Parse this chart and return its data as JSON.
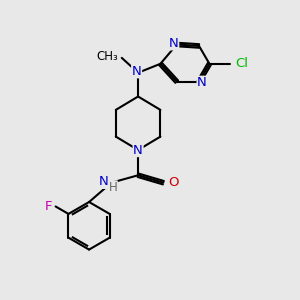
{
  "bg_color": "#e8e8e8",
  "bond_color": "#000000",
  "colors": {
    "N": "#0000cc",
    "Cl": "#00bb00",
    "O": "#cc0000",
    "F": "#cc00aa",
    "C": "#000000",
    "H": "#666666"
  },
  "figsize": [
    3.0,
    3.0
  ],
  "dpi": 100
}
